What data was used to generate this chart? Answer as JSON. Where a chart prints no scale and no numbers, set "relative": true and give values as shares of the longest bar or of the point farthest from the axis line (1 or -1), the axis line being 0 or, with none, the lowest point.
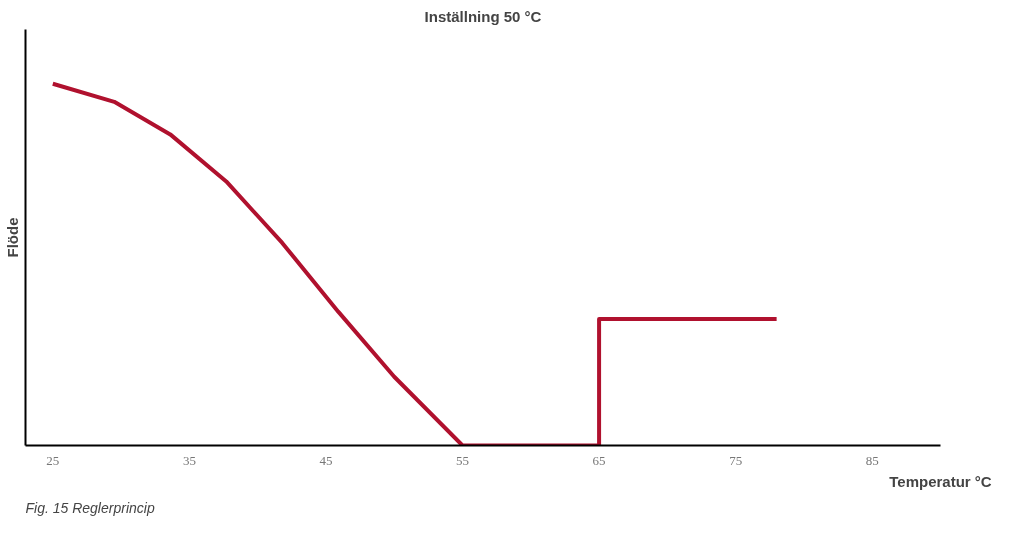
{
  "chart_data": {
    "type": "line",
    "title": "Inställning 50 °C",
    "xlabel": "Temperatur °C",
    "ylabel": "Flöde",
    "annotations": [
      "Fig. 15 Reglerprincip"
    ],
    "relative": true,
    "xlim": [
      23,
      90
    ],
    "xticks": [
      25,
      35,
      45,
      55,
      65,
      75,
      85
    ],
    "tick_labels": "x",
    "grid": false,
    "series": [
      {
        "color": "#b0112e",
        "x": [
          25,
          29.5,
          33.6,
          37.7,
          41.8,
          45.9,
          50,
          55,
          65,
          65,
          78
        ],
        "values": [
          1,
          0.95,
          0.86,
          0.73,
          0.56,
          0.37,
          0.19,
          0,
          0,
          0.35,
          0.35
        ]
      }
    ]
  }
}
